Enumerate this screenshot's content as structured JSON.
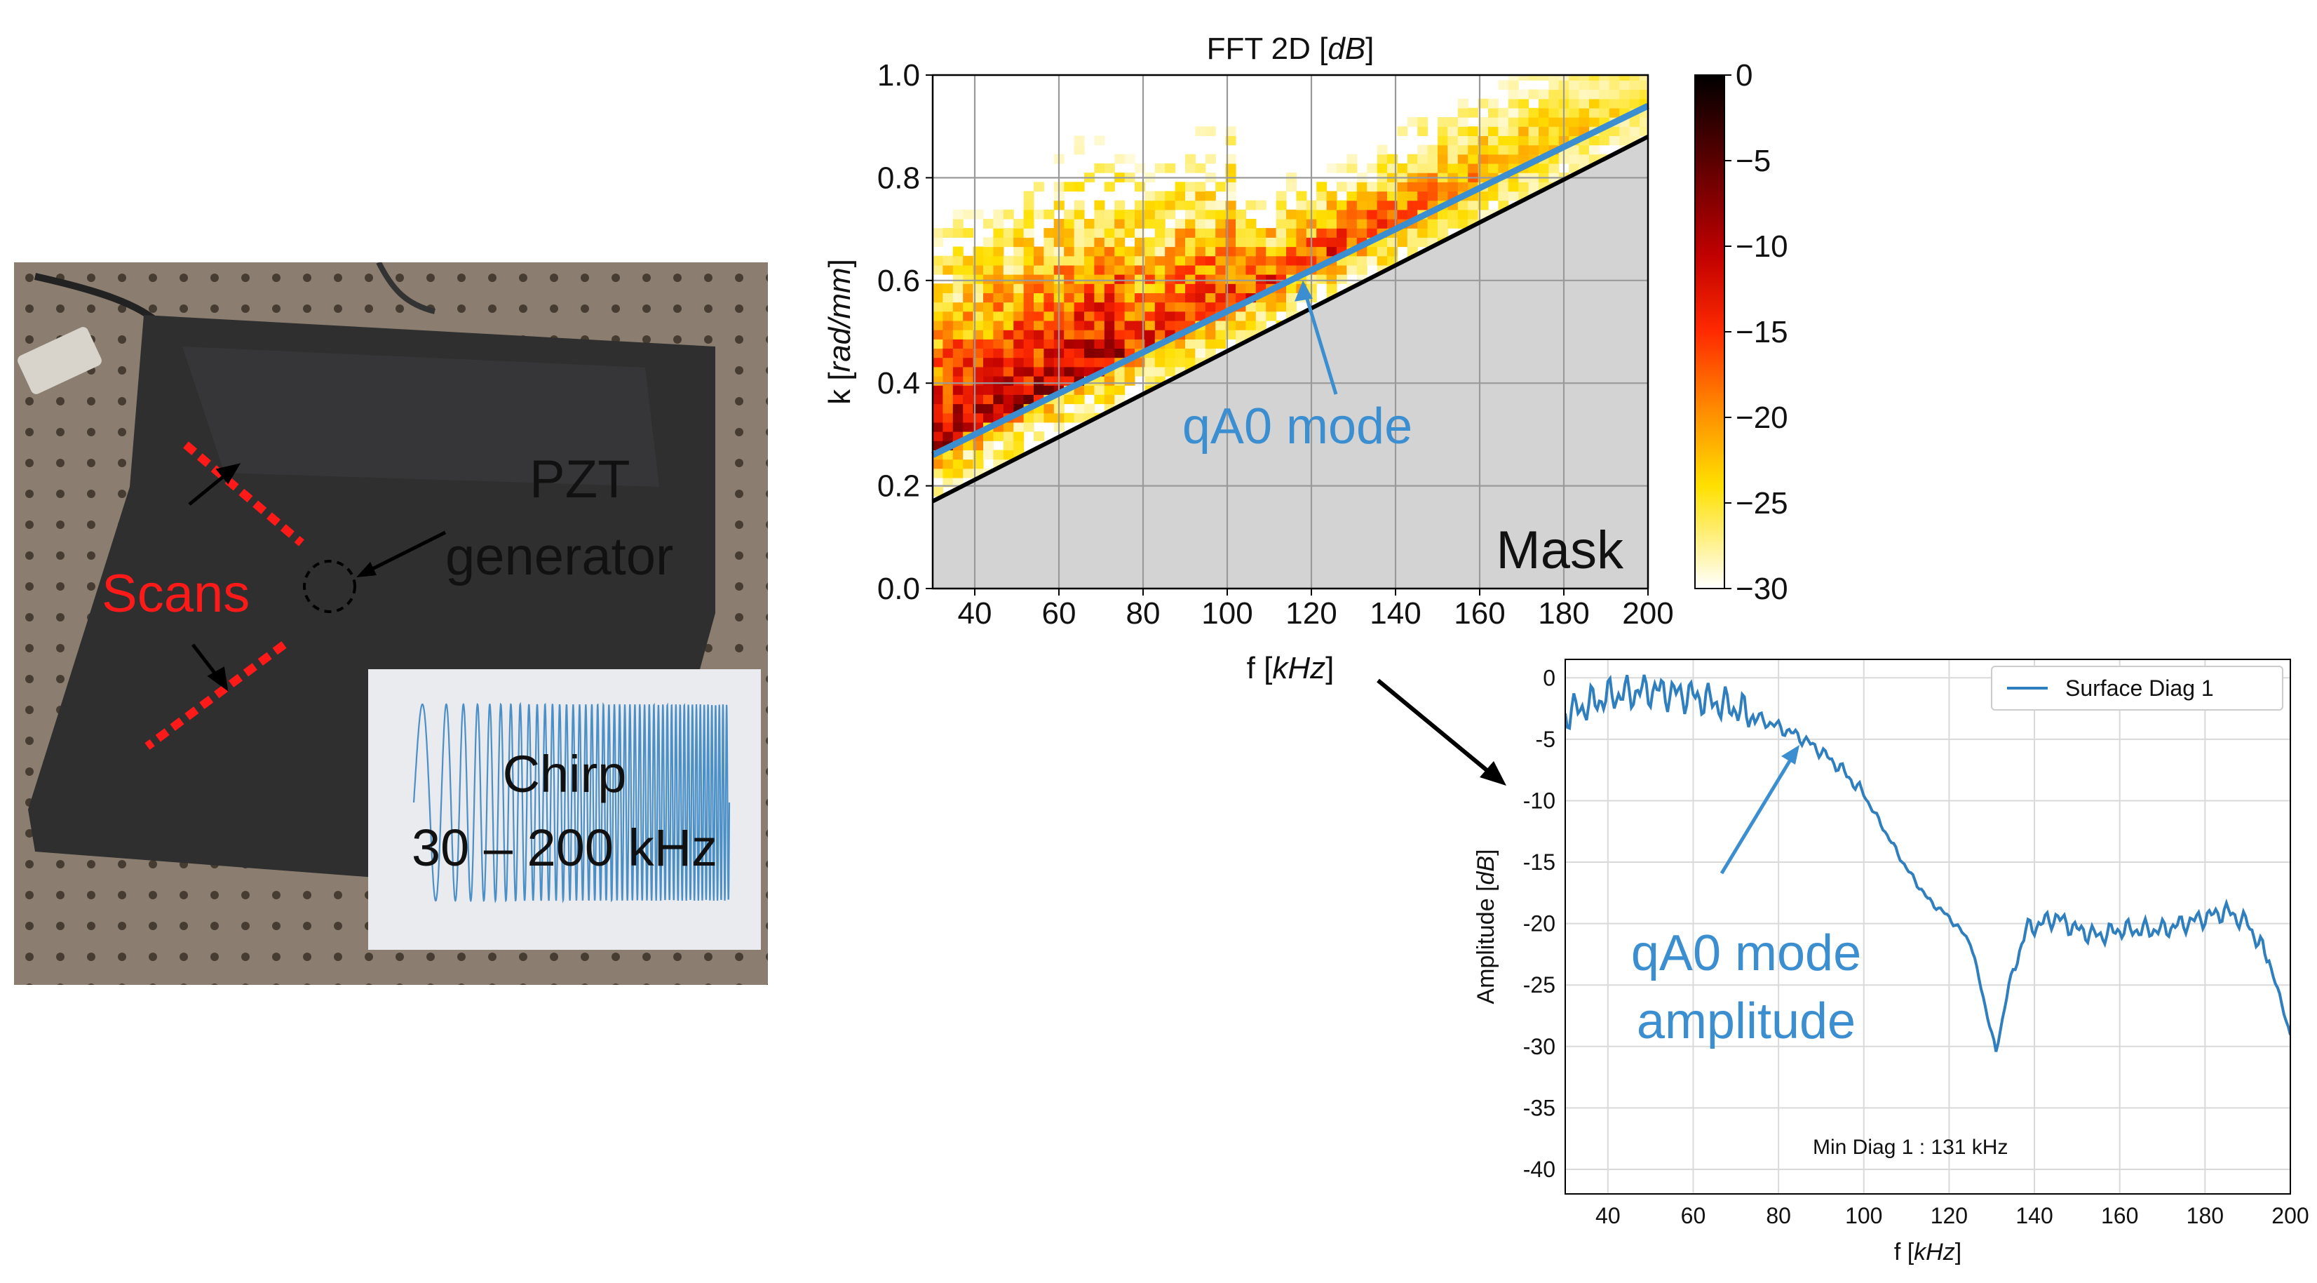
{
  "photo": {
    "scans_label": "Scans",
    "pzt_line1": "PZT",
    "pzt_line2": "generator",
    "chirp_line1": "Chirp",
    "chirp_line2": "30 – 200 kHz",
    "colors": {
      "plate": "#2b2b2b",
      "table": "#8a7d6e",
      "scan_red": "#ff1a1a",
      "chirp_blue": "#2f7fbf"
    }
  },
  "chart_data": [
    {
      "type": "heatmap",
      "title": "FFT 2D [dB]",
      "title_main": "FFT 2D [",
      "title_unit": "dB",
      "title_close": "]",
      "xlabel_main": "f [",
      "xlabel_unit": "kHz",
      "xlabel_close": "]",
      "ylabel_main": "k [",
      "ylabel_unit": "rad/mm",
      "ylabel_close": "]",
      "xlim": [
        30,
        200
      ],
      "ylim": [
        0,
        1.0
      ],
      "x_ticks": [
        40,
        60,
        80,
        100,
        120,
        140,
        160,
        180,
        200
      ],
      "y_ticks": [
        0.0,
        0.2,
        0.4,
        0.6,
        0.8,
        1.0
      ],
      "y_tick_labels": [
        "0.0",
        "0.2",
        "0.4",
        "0.6",
        "0.8",
        "1.0"
      ],
      "colorbar": {
        "min": -30,
        "max": 0,
        "ticks": [
          0,
          -5,
          -10,
          -15,
          -20,
          -25,
          -30
        ],
        "tick_labels": [
          "0",
          "−5",
          "−10",
          "−15",
          "−20",
          "−25",
          "−30"
        ]
      },
      "qA0_line": {
        "f": [
          30,
          200
        ],
        "k": [
          0.26,
          0.94
        ],
        "color": "#3b8ed0"
      },
      "mask_line": {
        "f": [
          30,
          200
        ],
        "k": [
          0.17,
          0.88
        ]
      },
      "mask_label": "Mask",
      "annotation": {
        "text": "qA0 mode",
        "arrow_to_f": 118,
        "arrow_to_k": 0.6
      },
      "grid": true
    },
    {
      "type": "line",
      "xlabel_main": "f [",
      "xlabel_unit": "kHz",
      "xlabel_close": "]",
      "ylabel_main": "Amplitude [",
      "ylabel_unit": "dB",
      "ylabel_close": "]",
      "xlim": [
        30,
        200
      ],
      "ylim": [
        -42,
        1.5
      ],
      "x_ticks": [
        40,
        60,
        80,
        100,
        120,
        140,
        160,
        180,
        200
      ],
      "y_ticks": [
        0,
        -5,
        -10,
        -15,
        -20,
        -25,
        -30,
        -35,
        -40
      ],
      "series": [
        {
          "name": "Surface Diag 1",
          "color": "#2f7fbf",
          "x": [
            30,
            40,
            50,
            60,
            70,
            80,
            85,
            90,
            95,
            100,
            105,
            110,
            115,
            120,
            125,
            128,
            131,
            134,
            138,
            145,
            150,
            155,
            160,
            165,
            170,
            175,
            180,
            185,
            190,
            195,
            200
          ],
          "y": [
            -3,
            -1.5,
            -1,
            -1.5,
            -2.5,
            -4,
            -4.8,
            -6,
            -7.5,
            -9.5,
            -12.5,
            -15.5,
            -18,
            -19.5,
            -21.5,
            -26,
            -30.5,
            -25,
            -20.5,
            -19.5,
            -20.5,
            -21,
            -20.5,
            -20.5,
            -20.5,
            -20,
            -19.5,
            -19,
            -20,
            -23,
            -29
          ]
        }
      ],
      "legend_position": "top-right",
      "annotation_main": "qA0 mode",
      "annotation_sub": "amplitude",
      "footer": "Min Diag 1 : 131 kHz",
      "grid": true
    }
  ]
}
